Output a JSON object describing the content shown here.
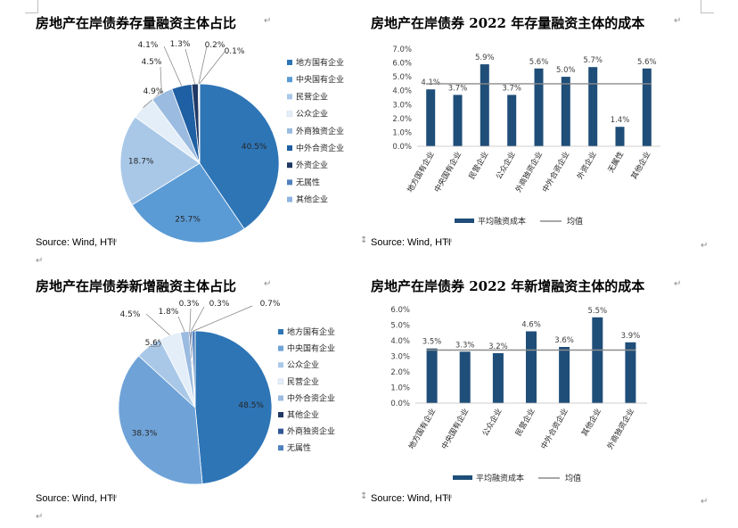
{
  "page": {
    "return_mark": "↵",
    "arrows_mark": "↕"
  },
  "chart_data": [
    {
      "type": "pie",
      "title": "房地产在岸债券存量融资主体占比",
      "source": "Source: Wind, HTI",
      "categories": [
        "地方国有企业",
        "中央国有企业",
        "民营企业",
        "公众企业",
        "外商独资企业",
        "中外合资企业",
        "外资企业",
        "无属性",
        "其他企业"
      ],
      "values": [
        40.5,
        25.7,
        18.7,
        4.9,
        4.5,
        4.1,
        1.3,
        0.2,
        0.1
      ],
      "labels": [
        "40.5%",
        "25.7%",
        "18.7%",
        "4.9%",
        "4.5%",
        "4.1%",
        "1.3%",
        "0.2%",
        "0.1%"
      ],
      "colors": [
        "#2e75b6",
        "#5b9bd5",
        "#a9c8e8",
        "#e4eef8",
        "#9bbbe0",
        "#1f5fa3",
        "#1f3864",
        "#4f81bd",
        "#8eb4e3"
      ],
      "legend_position": "right"
    },
    {
      "type": "bar",
      "title": "房地产在岸债券 2022 年存量融资主体的成本",
      "source": "Source: Wind, HTI",
      "categories": [
        "地方国有企业",
        "中央国有企业",
        "民营企业",
        "公众企业",
        "外商独资企业",
        "中外合资企业",
        "外资企业",
        "无属性",
        "其他企业"
      ],
      "series": [
        {
          "name": "平均融资成本",
          "values": [
            4.1,
            3.7,
            5.9,
            3.7,
            5.6,
            5.0,
            5.7,
            1.4,
            5.6
          ]
        },
        {
          "name": "均值",
          "values": [
            4.5,
            4.5,
            4.5,
            4.5,
            4.5,
            4.5,
            4.5,
            4.5,
            4.5
          ]
        }
      ],
      "data_labels": [
        "4.1%",
        "3.7%",
        "5.9%",
        "3.7%",
        "5.6%",
        "5.0%",
        "5.7%",
        "1.4%",
        "5.6%"
      ],
      "yticks": [
        "0.0%",
        "1.0%",
        "2.0%",
        "3.0%",
        "4.0%",
        "5.0%",
        "6.0%",
        "7.0%"
      ],
      "ylim": [
        0,
        7
      ],
      "bar_color": "#1f4e79",
      "line_color": "#8c8c8c",
      "legend_position": "bottom"
    },
    {
      "type": "pie",
      "title": "房地产在岸债券新增融资主体占比",
      "source": "Source: Wind, HTI",
      "categories": [
        "地方国有企业",
        "中央国有企业",
        "公众企业",
        "民营企业",
        "中外合资企业",
        "其他企业",
        "外商独资企业",
        "无属性"
      ],
      "values": [
        48.5,
        38.3,
        5.6,
        4.5,
        1.8,
        0.3,
        0.3,
        0.7
      ],
      "labels": [
        "48.5%",
        "38.3%",
        "5.6%",
        "4.5%",
        "1.8%",
        "0.3%",
        "0.3%",
        "0.7%"
      ],
      "colors": [
        "#2e75b6",
        "#6fa3d8",
        "#a9c8e8",
        "#e4eef8",
        "#9bbbe0",
        "#1f3864",
        "#2f5597",
        "#4f81bd"
      ],
      "legend_position": "right"
    },
    {
      "type": "bar",
      "title": "房地产在岸债券 2022 年新增融资主体的成本",
      "source": "Source: Wind, HTI",
      "categories": [
        "地方国有企业",
        "中央国有企业",
        "公众企业",
        "民营企业",
        "中外合资企业",
        "其他企业",
        "外商独资企业"
      ],
      "series": [
        {
          "name": "平均融资成本",
          "values": [
            3.5,
            3.3,
            3.2,
            4.6,
            3.6,
            5.5,
            3.9
          ]
        },
        {
          "name": "均值",
          "values": [
            3.4,
            3.4,
            3.4,
            3.4,
            3.4,
            3.4,
            3.4
          ]
        }
      ],
      "data_labels": [
        "3.5%",
        "3.3%",
        "3.2%",
        "4.6%",
        "3.6%",
        "5.5%",
        "3.9%"
      ],
      "yticks": [
        "0.0%",
        "1.0%",
        "2.0%",
        "3.0%",
        "4.0%",
        "5.0%",
        "6.0%"
      ],
      "ylim": [
        0,
        6
      ],
      "bar_color": "#1f4e79",
      "line_color": "#8c8c8c",
      "legend_position": "bottom"
    }
  ]
}
